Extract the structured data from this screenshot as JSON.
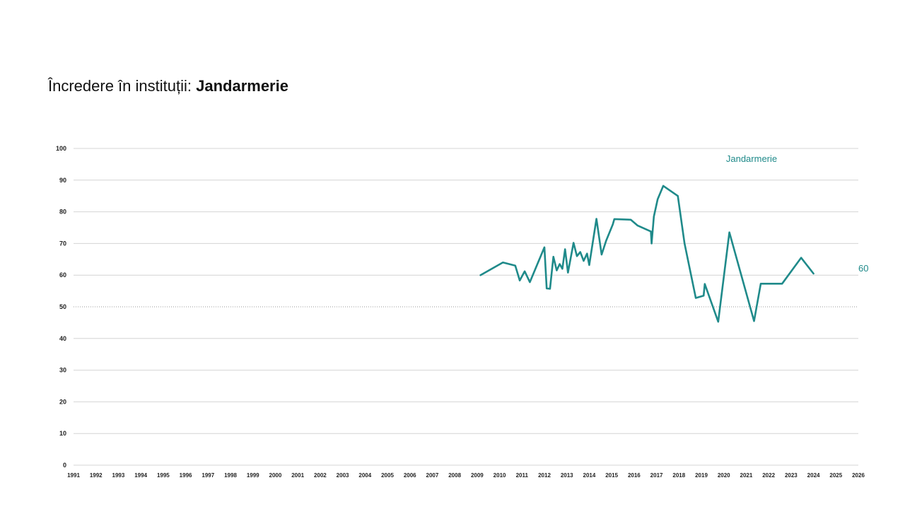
{
  "title": {
    "prefix": "Încredere în instituții: ",
    "bold": "Jandarmerie"
  },
  "chart_data": {
    "type": "line",
    "title": "Încredere în instituții: Jandarmerie",
    "xlabel": "",
    "ylabel": "",
    "ylim": [
      0,
      100
    ],
    "yticks": [
      "0",
      "10",
      "20",
      "30",
      "40",
      "50",
      "60",
      "70",
      "80",
      "90",
      "100"
    ],
    "xlim": [
      1991,
      2026
    ],
    "xticks": [
      "1991",
      "1992",
      "1993",
      "1994",
      "1995",
      "1996",
      "1997",
      "1998",
      "1999",
      "2000",
      "2001",
      "2002",
      "2003",
      "2004",
      "2005",
      "2006",
      "2007",
      "2008",
      "2009",
      "2010",
      "2011",
      "2012",
      "2013",
      "2014",
      "2015",
      "2016",
      "2017",
      "2018",
      "2019",
      "2020",
      "2021",
      "2022",
      "2023",
      "2024",
      "2025",
      "2026"
    ],
    "grid": true,
    "reference_line": {
      "y": 50,
      "style": "dotted"
    },
    "color": "#1f8a8a",
    "end_label": "60",
    "series": [
      {
        "name": "Jandarmerie",
        "x": [
          2009.15,
          2010.15,
          2010.7,
          2010.9,
          2011.12,
          2011.35,
          2012.0,
          2012.1,
          2012.25,
          2012.4,
          2012.55,
          2012.68,
          2012.8,
          2012.92,
          2013.05,
          2013.3,
          2013.45,
          2013.6,
          2013.75,
          2013.9,
          2014.0,
          2014.32,
          2014.55,
          2014.75,
          2015.05,
          2015.12,
          2015.85,
          2016.15,
          2016.75,
          2016.78,
          2016.88,
          2017.05,
          2017.3,
          2017.95,
          2018.25,
          2018.75,
          2019.1,
          2019.15,
          2019.75,
          2020.25,
          2021.35,
          2021.65,
          2022.6,
          2023.45,
          2024.0
        ],
        "y": [
          60.0,
          64.0,
          63.0,
          58.3,
          61.2,
          57.8,
          68.8,
          55.8,
          55.7,
          65.8,
          61.5,
          63.5,
          62.0,
          68.2,
          60.8,
          70.2,
          66.0,
          67.3,
          64.5,
          66.8,
          63.2,
          77.8,
          66.5,
          70.8,
          76.0,
          77.7,
          77.5,
          75.7,
          73.8,
          70.0,
          78.5,
          84.0,
          88.2,
          85.0,
          70.0,
          52.8,
          53.5,
          57.2,
          45.3,
          73.5,
          45.5,
          57.3,
          57.3,
          65.5,
          60.5
        ]
      }
    ]
  }
}
